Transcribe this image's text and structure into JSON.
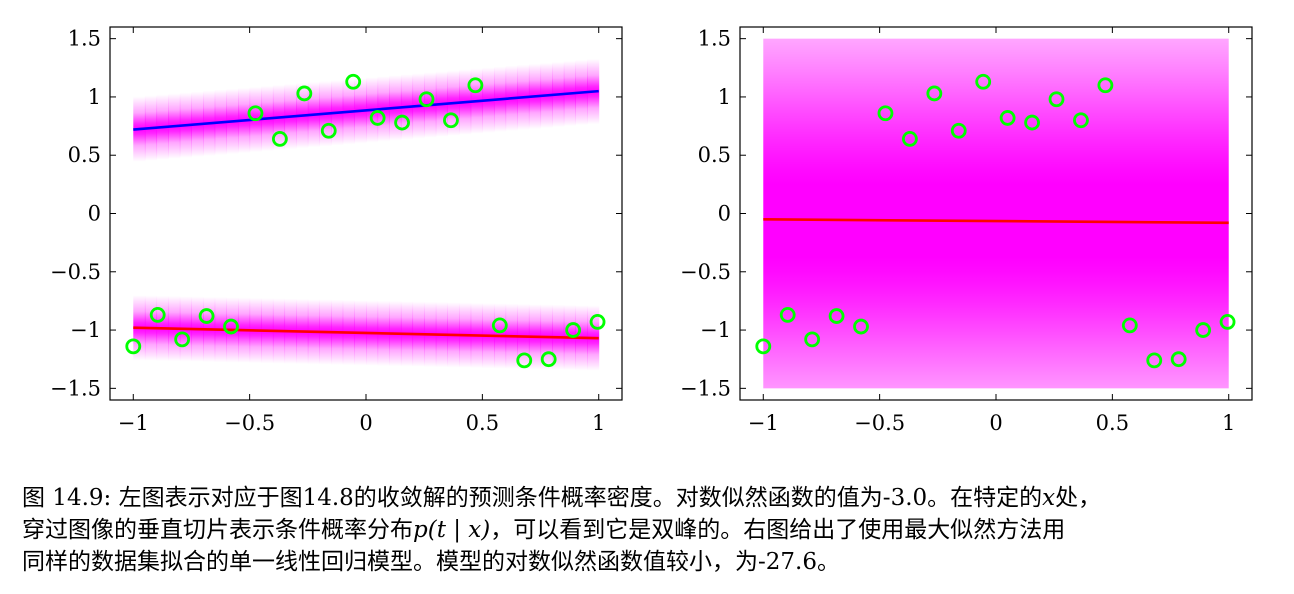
{
  "chart_data": [
    {
      "type": "scatter",
      "panel": "left",
      "xlim": [
        -1.1,
        1.1
      ],
      "ylim": [
        -1.6,
        1.6
      ],
      "xticks": [
        "−1",
        "−0.5",
        "0",
        "0.5",
        "1"
      ],
      "xtick_values": [
        -1,
        -0.5,
        0,
        0.5,
        1
      ],
      "yticks": [
        "1.5",
        "1",
        "0.5",
        "0",
        "−0.5",
        "−1",
        "−1.5"
      ],
      "ytick_values": [
        1.5,
        1,
        0.5,
        0,
        -0.5,
        -1,
        -1.5
      ],
      "points": {
        "x": [
          -1.0,
          -0.895,
          -0.79,
          -0.685,
          -0.58,
          -0.475,
          -0.37,
          -0.265,
          -0.16,
          -0.055,
          0.05,
          0.155,
          0.26,
          0.365,
          0.47,
          0.575,
          0.68,
          0.785,
          0.89,
          0.995
        ],
        "y": [
          -1.14,
          -0.87,
          -1.08,
          -0.88,
          -0.97,
          0.86,
          0.64,
          1.03,
          0.71,
          1.13,
          0.82,
          0.78,
          0.98,
          0.8,
          1.1,
          -0.96,
          -1.26,
          -1.25,
          -1.0,
          -0.93
        ]
      },
      "series": [
        {
          "color": "#0000ff",
          "x": [
            -1,
            1
          ],
          "y": [
            0.72,
            1.05
          ]
        },
        {
          "color": "#ff0000",
          "x": [
            -1,
            1
          ],
          "y": [
            -0.98,
            -1.07
          ]
        }
      ],
      "density_bands": [
        {
          "x": [
            -1,
            1
          ],
          "center": [
            0.72,
            1.05
          ],
          "halfwidth": 0.28
        },
        {
          "x": [
            -1,
            1
          ],
          "center": [
            -0.98,
            -1.07
          ],
          "halfwidth": 0.28
        }
      ]
    },
    {
      "type": "scatter",
      "panel": "right",
      "xlim": [
        -1.1,
        1.1
      ],
      "ylim": [
        -1.6,
        1.6
      ],
      "xticks": [
        "−1",
        "−0.5",
        "0",
        "0.5",
        "1"
      ],
      "xtick_values": [
        -1,
        -0.5,
        0,
        0.5,
        1
      ],
      "yticks": [
        "1.5",
        "1",
        "0.5",
        "0",
        "−0.5",
        "−1",
        "−1.5"
      ],
      "ytick_values": [
        1.5,
        1,
        0.5,
        0,
        -0.5,
        -1,
        -1.5
      ],
      "points": {
        "x": [
          -1.0,
          -0.895,
          -0.79,
          -0.685,
          -0.58,
          -0.475,
          -0.37,
          -0.265,
          -0.16,
          -0.055,
          0.05,
          0.155,
          0.26,
          0.365,
          0.47,
          0.575,
          0.68,
          0.785,
          0.89,
          0.995
        ],
        "y": [
          -1.14,
          -0.87,
          -1.08,
          -0.88,
          -0.97,
          0.86,
          0.64,
          1.03,
          0.71,
          1.13,
          0.82,
          0.78,
          0.98,
          0.8,
          1.1,
          -0.96,
          -1.26,
          -1.25,
          -1.0,
          -0.93
        ]
      },
      "series": [
        {
          "color": "#ff0000",
          "x": [
            -1,
            1
          ],
          "y": [
            -0.05,
            -0.08
          ]
        }
      ],
      "density_wide": {
        "x": [
          -1,
          1
        ],
        "ylim": [
          -1.5,
          1.5
        ],
        "center": [
          -0.05,
          -0.08
        ],
        "sigma": 1.0
      }
    }
  ],
  "colors": {
    "density": "#ff00ff",
    "points": "#00ff00",
    "line_blue": "#0000ff",
    "line_red": "#ff0000"
  },
  "caption": {
    "line1_a": "图 14.9: 左图表示对应于图14.8的收敛解的预测条件概率密度。对数似然函数的值为-3.0。在特定的",
    "line1_x": "x",
    "line1_b": "处，",
    "line2_a": "穿过图像的垂直切片表示条件概率分布",
    "line2_math": "p(t | x)",
    "line2_b": "，可以看到它是双峰的。右图给出了使用最大似然方法用",
    "line3": "同样的数据集拟合的单一线性回归模型。模型的对数似然函数值较小，为-27.6。"
  }
}
